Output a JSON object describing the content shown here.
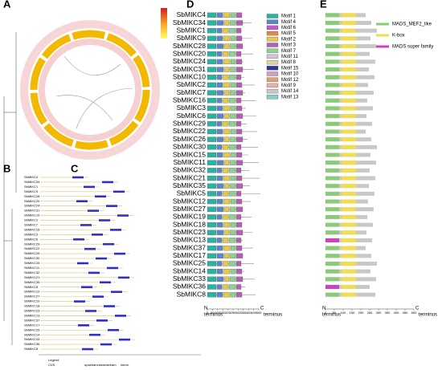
{
  "panels": [
    "A",
    "B",
    "C",
    "D",
    "E"
  ],
  "tree_labels": [
    "SbMIKC4",
    "SbMIKC34",
    "SbMIKC1",
    "SbMIKC9",
    "SbMIKC28",
    "SbMIKC20",
    "SbMIKC24",
    "SbMIKC31",
    "SbMIKC10",
    "SbMIKC2",
    "SbMIKC7",
    "SbMIKC16",
    "SbMIKC3",
    "SbMIKC6",
    "SbMIKC29",
    "SbMIKC22",
    "SbMIKC26",
    "SbMIKC30",
    "SbMIKC15",
    "SbMIKC11",
    "SbMIKC32",
    "SbMIKC21",
    "SbMIKC35",
    "SbMIKC5",
    "SbMIKC12",
    "SbMIKC27",
    "SbMIKC19",
    "SbMIKC18",
    "SbMIKC23",
    "SbMIKC13",
    "SbMIKC37",
    "SbMIKC17",
    "SbMIKC25",
    "SbMIKC14",
    "SbMIKC33",
    "SbMIKC36",
    "SbMIKC8"
  ],
  "structure_legend": {
    "title": "Legend",
    "items": [
      "CDS",
      "upstream/downstream",
      "intron"
    ]
  },
  "motif_panel": {
    "genes": [
      "SbMIKC4",
      "SbMIKC34",
      "SbMIKC1",
      "SbMIKC9",
      "SbMIKC28",
      "SbMIKC20",
      "SbMIKC24",
      "SbMIKC31",
      "SbMIKC10",
      "SbMIKC2",
      "SbMIKC7",
      "SbMIKC16",
      "SbMIKC3",
      "SbMIKC6",
      "SbMIKC29",
      "SbMIKC22",
      "SbMIKC26",
      "SbMIKC30",
      "SbMIKC15",
      "SbMIKC11",
      "SbMIKC32",
      "SbMIKC21",
      "SbMIKC35",
      "SbMIKC5",
      "SbMIKC12",
      "SbMIKC27",
      "SbMIKC19",
      "SbMIKC18",
      "SbMIKC23",
      "SbMIKC13",
      "SbMIKC37",
      "SbMIKC17",
      "SbMIKC25",
      "SbMIKC14",
      "SbMIKC33",
      "SbMIKC36",
      "SbMIKC8"
    ],
    "motifs": [
      {
        "name": "Motif 1",
        "color": "#2ab3a3"
      },
      {
        "name": "Motif 4",
        "color": "#5b87c9"
      },
      {
        "name": "Motif 6",
        "color": "#c25bc9"
      },
      {
        "name": "Motif 5",
        "color": "#e08a4a"
      },
      {
        "name": "Motif 2",
        "color": "#e6c84a"
      },
      {
        "name": "Motif 3",
        "color": "#b45fb4"
      },
      {
        "name": "Motif 7",
        "color": "#8fd18f"
      },
      {
        "name": "Motif 11",
        "color": "#d8c0d8"
      },
      {
        "name": "Motif 8",
        "color": "#d8d8a0"
      },
      {
        "name": "Motif 15",
        "color": "#333399"
      },
      {
        "name": "Motif 10",
        "color": "#d0a0c0"
      },
      {
        "name": "Motif 12",
        "color": "#e0a070"
      },
      {
        "name": "Motif 9",
        "color": "#e8b0b0"
      },
      {
        "name": "Motif 14",
        "color": "#c8c8c8"
      },
      {
        "name": "Motif 13",
        "color": "#80d0c8"
      }
    ],
    "xticks": [
      0,
      50,
      100,
      150,
      200,
      250,
      300,
      350,
      400,
      450,
      500
    ],
    "n_label": "N",
    "c_label": "C",
    "terminus": "terminus"
  },
  "domain_panel": {
    "domains": [
      {
        "name": "MADS_MEF2_like",
        "color": "#88cc77"
      },
      {
        "name": "K-box",
        "color": "#f2dc50"
      },
      {
        "name": "MADS super family",
        "color": "#d040c0"
      }
    ],
    "xticks": [
      0,
      50,
      100,
      150,
      200,
      250,
      300,
      350,
      400,
      450,
      500
    ],
    "n_label": "N",
    "c_label": "C",
    "terminus": "terminus"
  }
}
